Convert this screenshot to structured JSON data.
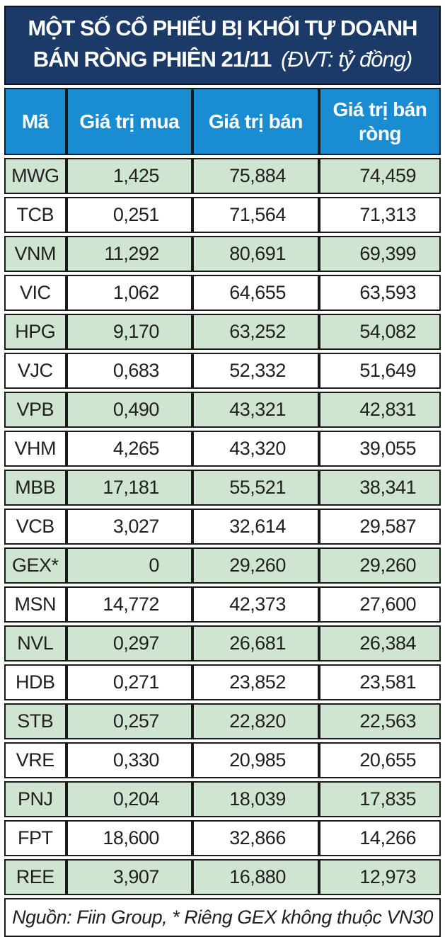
{
  "title": {
    "line1": "MỘT SỐ CỔ PHIẾU BỊ KHỐI TỰ DOANH",
    "line2": "BÁN RÒNG PHIÊN 21/11",
    "unit_note": "(ĐVT: tỷ đồng)"
  },
  "chart_data": {
    "type": "table",
    "title": "MỘT SỐ CỔ PHIẾU BỊ KHỐI TỰ DOANH BÁN RÒNG PHIÊN 21/11",
    "unit": "tỷ đồng",
    "columns": [
      "Mã",
      "Giá trị mua",
      "Giá trị bán",
      "Giá trị bán ròng"
    ],
    "rows": [
      [
        "MWG",
        "1,425",
        "75,884",
        "74,459"
      ],
      [
        "TCB",
        "0,251",
        "71,564",
        "71,313"
      ],
      [
        "VNM",
        "11,292",
        "80,691",
        "69,399"
      ],
      [
        "VIC",
        "1,062",
        "64,655",
        "63,593"
      ],
      [
        "HPG",
        "9,170",
        "63,252",
        "54,082"
      ],
      [
        "VJC",
        "0,683",
        "52,332",
        "51,649"
      ],
      [
        "VPB",
        "0,490",
        "43,321",
        "42,831"
      ],
      [
        "VHM",
        "4,265",
        "43,320",
        "39,055"
      ],
      [
        "MBB",
        "17,181",
        "55,521",
        "38,341"
      ],
      [
        "VCB",
        "3,027",
        "32,614",
        "29,587"
      ],
      [
        "GEX*",
        "0",
        "29,260",
        "29,260"
      ],
      [
        "MSN",
        "14,772",
        "42,373",
        "27,600"
      ],
      [
        "NVL",
        "0,297",
        "26,681",
        "26,384"
      ],
      [
        "HDB",
        "0,271",
        "23,852",
        "23,581"
      ],
      [
        "STB",
        "0,257",
        "22,820",
        "22,563"
      ],
      [
        "VRE",
        "0,330",
        "20,985",
        "20,655"
      ],
      [
        "PNJ",
        "0,204",
        "18,039",
        "17,835"
      ],
      [
        "FPT",
        "18,600",
        "32,866",
        "14,266"
      ],
      [
        "REE",
        "3,907",
        "16,880",
        "12,973"
      ]
    ]
  },
  "footer": {
    "text": "Nguồn: Fiin Group, * Riêng GEX không thuộc VN30"
  },
  "colors": {
    "title_bg": "#1b3a67",
    "header_bg": "#1a8cd1",
    "row_green": "#cfe5d2",
    "row_white": "#ffffff",
    "border": "#1a1a1a",
    "text_dark": "#221f1f",
    "header_text": "#ffffff"
  }
}
